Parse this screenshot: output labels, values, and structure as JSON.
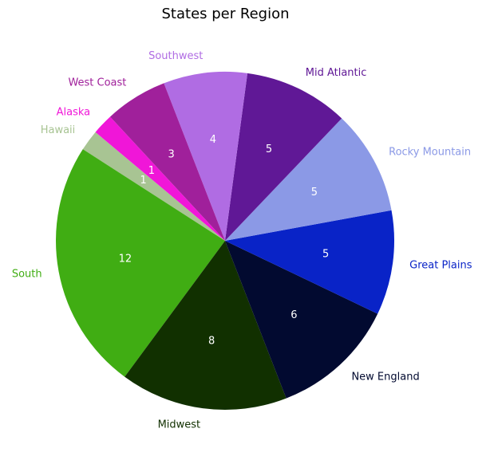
{
  "chart_data": {
    "type": "pie",
    "title": "States per Region",
    "categories": [
      "Hawaii",
      "South",
      "Midwest",
      "New England",
      "Great Plains",
      "Rocky Mountain",
      "Mid Atlantic",
      "Southwest",
      "West Coast",
      "Alaska"
    ],
    "values": [
      1,
      12,
      8,
      6,
      5,
      5,
      5,
      4,
      3,
      1
    ],
    "colors": [
      "#a8c493",
      "#40ad13",
      "#113000",
      "#020a30",
      "#0923c7",
      "#8b99e6",
      "#601896",
      "#b06ce3",
      "#a0209b",
      "#f016d8"
    ],
    "start_angle_deg": 140,
    "direction": "counterclockwise"
  }
}
